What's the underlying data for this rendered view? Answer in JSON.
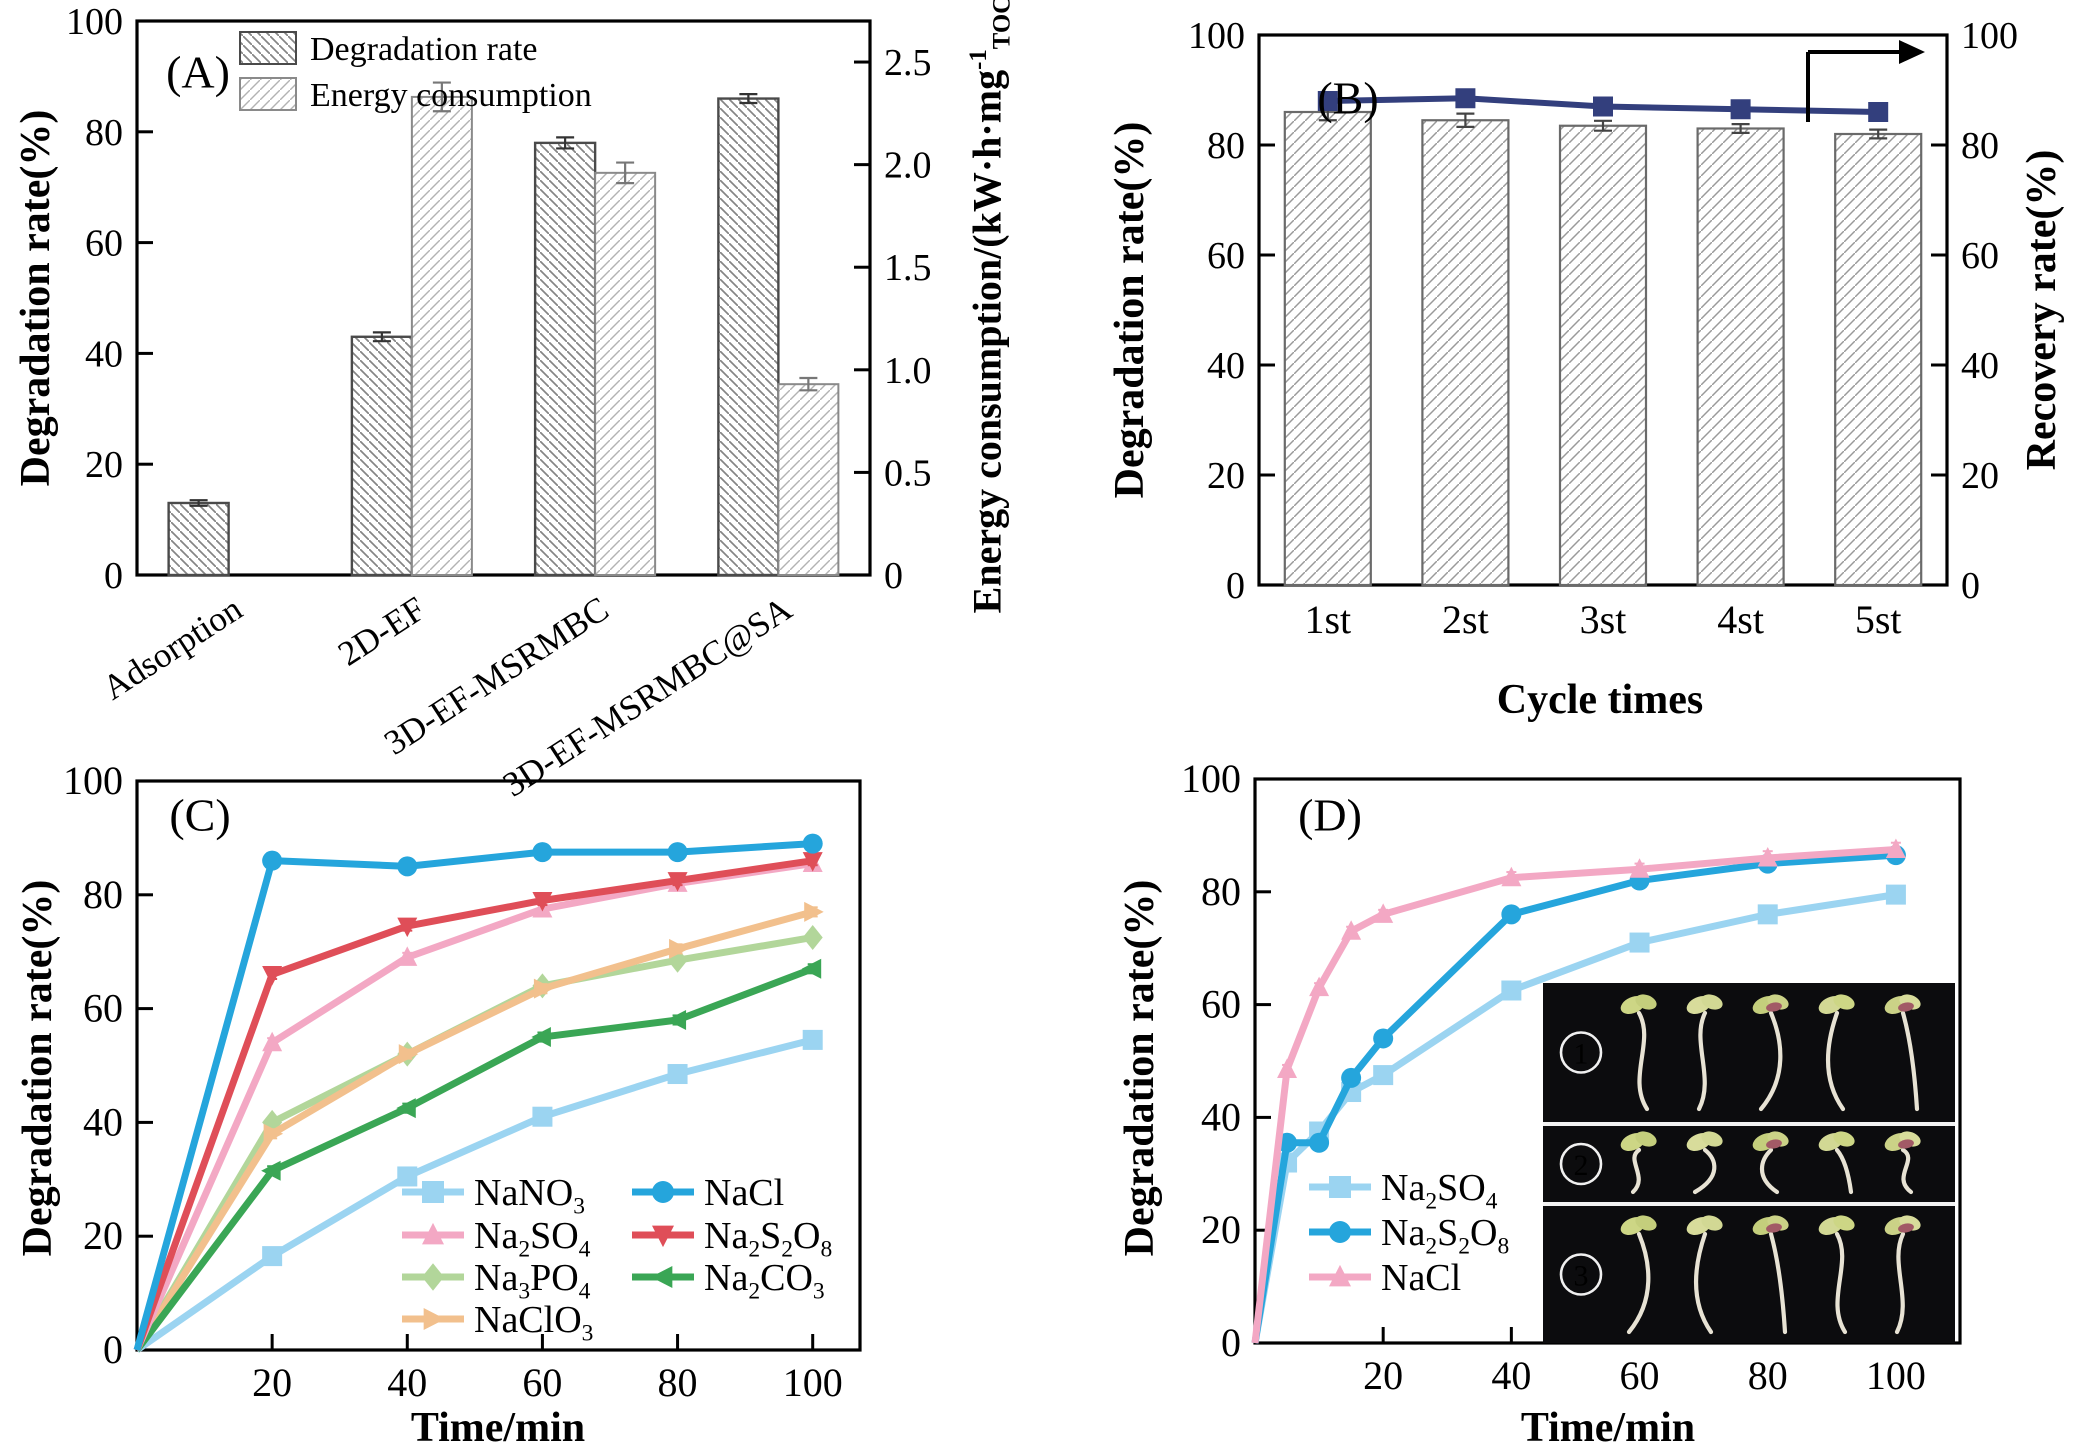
{
  "chart_data": [
    {
      "id": "A",
      "type": "bar-dual",
      "panel_label": "(A)",
      "ylabel_left": "Degradation rate(%)",
      "ylabel_right_parts": [
        "Energy consumption/(kW·h·mg",
        {
          "u": "-1"
        },
        {
          "s": "TOC"
        },
        ")"
      ],
      "categories": [
        "Adsorption",
        "2D-EF",
        "3D-EF-MSRMBC",
        "3D-EF-MSRMBC@SA"
      ],
      "ylim_left": [
        0,
        100
      ],
      "yticks_left": [
        0,
        20,
        40,
        60,
        80,
        100
      ],
      "ylim_right": [
        0,
        2.7
      ],
      "yticks_right": [
        0,
        0.5,
        1.0,
        1.5,
        2.0,
        2.5
      ],
      "yticks_right_labels": [
        "0",
        "0.5",
        "1.0",
        "1.5",
        "2.0",
        "2.5"
      ],
      "legend": [
        "Degradation rate",
        "Energy consumption"
      ],
      "series": [
        {
          "name": "Degradation rate",
          "axis": "left",
          "hatch": "back",
          "values": [
            13,
            43,
            78,
            86
          ],
          "errors": [
            0.5,
            0.8,
            1.0,
            0.8
          ]
        },
        {
          "name": "Energy consumption",
          "axis": "right",
          "hatch": "fwd",
          "values": [
            null,
            2.33,
            1.96,
            0.93
          ],
          "errors": [
            null,
            0.07,
            0.05,
            0.03
          ]
        }
      ]
    },
    {
      "id": "B",
      "type": "bar-line",
      "panel_label": "(B)",
      "ylabel_left": "Degradation rate(%)",
      "ylabel_right": "Recovery rate(%)",
      "xlabel": "Cycle times",
      "categories": [
        "1st",
        "2st",
        "3st",
        "4st",
        "5st"
      ],
      "ylim": [
        0,
        100
      ],
      "yticks": [
        0,
        20,
        40,
        60,
        80,
        100
      ],
      "bar_series": {
        "name": "Degradation rate",
        "values": [
          86,
          84.5,
          83.5,
          83,
          82
        ],
        "errors": [
          1.5,
          1.2,
          0.9,
          0.8,
          0.8
        ]
      },
      "line_series": {
        "name": "Recovery rate",
        "color": "#333f7d",
        "values": [
          88,
          88.5,
          87,
          86.5,
          86
        ],
        "errors": [
          1.2,
          1.0,
          0.8,
          0.8,
          0.8
        ]
      },
      "arrow_to_right_axis": true
    },
    {
      "id": "C",
      "type": "line",
      "panel_label": "(C)",
      "ylabel": "Degradation rate(%)",
      "xlabel": "Time/min",
      "x": [
        0,
        20,
        40,
        60,
        80,
        100
      ],
      "xticks": [
        20,
        40,
        60,
        80,
        100
      ],
      "xlim": [
        0,
        107
      ],
      "ylim": [
        0,
        100
      ],
      "yticks": [
        0,
        20,
        40,
        60,
        80,
        100
      ],
      "series": [
        {
          "name_parts": [
            "NaNO",
            {
              "s": "3"
            }
          ],
          "color": "#9bd4f1",
          "marker": "square",
          "values": [
            0,
            16.5,
            30.5,
            41,
            48.5,
            54.5
          ]
        },
        {
          "name_parts": [
            "Na",
            {
              "s": "2"
            },
            "SO",
            {
              "s": "4"
            }
          ],
          "color": "#f3a8c4",
          "marker": "tri-up",
          "values": [
            0,
            54,
            69,
            77.5,
            82,
            85.5
          ]
        },
        {
          "name_parts": [
            "Na",
            {
              "s": "3"
            },
            "PO",
            {
              "s": "4"
            }
          ],
          "color": "#b2d69a",
          "marker": "diamond",
          "values": [
            0,
            40,
            52,
            64,
            68.5,
            72.5
          ]
        },
        {
          "name_parts": [
            "NaClO",
            {
              "s": "3"
            }
          ],
          "color": "#f2c08d",
          "marker": "tri-right",
          "values": [
            0,
            38,
            52,
            63.5,
            70.5,
            77
          ]
        },
        {
          "name_parts": [
            "NaCl"
          ],
          "color": "#25a5dc",
          "marker": "circle",
          "values": [
            0,
            86,
            85,
            87.5,
            87.5,
            89
          ]
        },
        {
          "name_parts": [
            "Na",
            {
              "s": "2"
            },
            "S",
            {
              "s": "2"
            },
            "O",
            {
              "s": "8"
            }
          ],
          "color": "#df4e58",
          "marker": "tri-down",
          "values": [
            0,
            66,
            74.5,
            79,
            82.5,
            86
          ]
        },
        {
          "name_parts": [
            "Na",
            {
              "s": "2"
            },
            "CO",
            {
              "s": "3"
            }
          ],
          "color": "#3aa655",
          "marker": "tri-left",
          "values": [
            0,
            31.5,
            42.5,
            55,
            58,
            67
          ]
        }
      ],
      "draw_order": [
        0,
        2,
        3,
        6,
        1,
        5,
        4
      ],
      "legend": {
        "col1": [
          0,
          1,
          2,
          3
        ],
        "col2": [
          4,
          5,
          6
        ]
      }
    },
    {
      "id": "D",
      "type": "line",
      "panel_label": "(D)",
      "ylabel": "Degradation rate(%)",
      "xlabel": "Time/min",
      "x": [
        0,
        5,
        10,
        15,
        20,
        40,
        60,
        80,
        100
      ],
      "xticks": [
        20,
        40,
        60,
        80,
        100
      ],
      "xlim": [
        0,
        110
      ],
      "ylim": [
        0,
        100
      ],
      "yticks": [
        0,
        20,
        40,
        60,
        80,
        100
      ],
      "series": [
        {
          "name_parts": [
            "Na",
            {
              "s": "2"
            },
            "SO",
            {
              "s": "4"
            }
          ],
          "color": "#9bd4f1",
          "marker": "square",
          "values": [
            0,
            32,
            37.5,
            44.5,
            47.5,
            62.5,
            71,
            76,
            79.5
          ],
          "errors": [
            0,
            0.8,
            0.8,
            0.8,
            0.8,
            0.8,
            0.8,
            0.8,
            0.8
          ]
        },
        {
          "name_parts": [
            "Na",
            {
              "s": "2"
            },
            "S",
            {
              "s": "2"
            },
            "O",
            {
              "s": "8"
            }
          ],
          "color": "#25a5dc",
          "marker": "circle",
          "values": [
            0,
            35.5,
            35.5,
            47,
            54,
            76,
            82,
            85,
            86.5
          ],
          "errors": [
            0,
            0.8,
            0.8,
            0.8,
            0.8,
            0.8,
            0.8,
            0.8,
            0.8
          ]
        },
        {
          "name_parts": [
            "NaCl"
          ],
          "color": "#f3a8c4",
          "marker": "tri-up",
          "values": [
            0,
            48.5,
            63,
            73,
            76,
            82.5,
            84,
            86,
            87.5
          ],
          "errors": [
            0,
            0.8,
            0.8,
            0.8,
            0.8,
            1.0,
            1.0,
            1.2,
            1.2
          ]
        }
      ],
      "draw_order": [
        0,
        1,
        2
      ],
      "legend": {
        "col1": [
          0,
          1,
          2
        ]
      },
      "inset": {
        "row_labels": [
          "1",
          "2",
          "3"
        ],
        "seedlings_per_row": 5
      }
    }
  ]
}
